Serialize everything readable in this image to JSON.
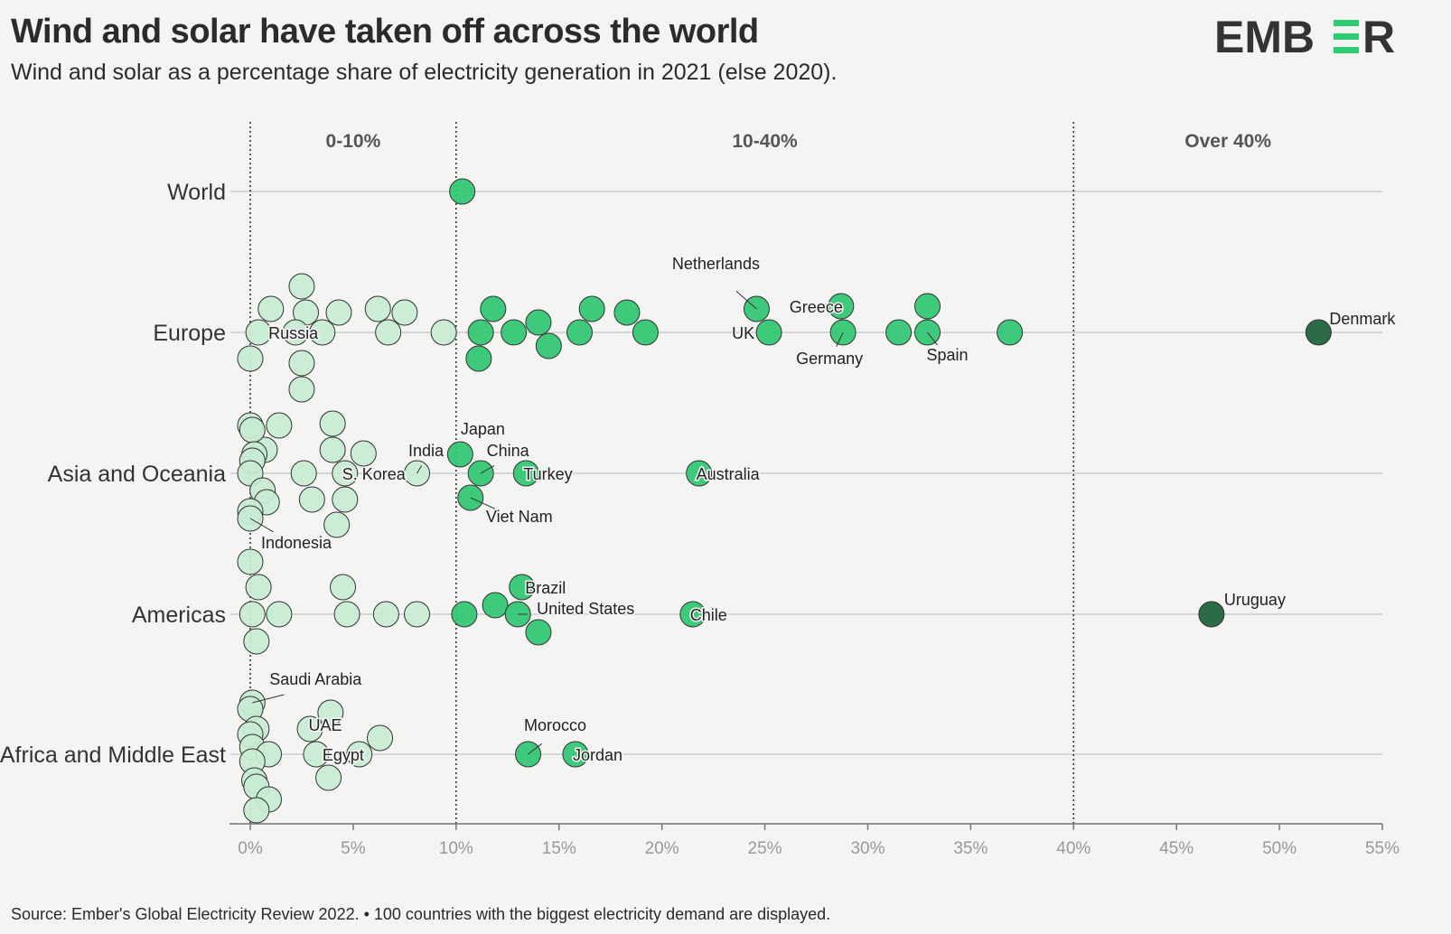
{
  "title": "Wind and solar have taken off across the world",
  "subtitle": "Wind and solar as a percentage share of electricity generation in 2021 (else 2020).",
  "logo": {
    "text_left": "EMB",
    "text_right": "R",
    "colors": {
      "dark": "#333333",
      "accent": "#2ecc71"
    }
  },
  "footer": "Source: Ember's Global Electricity Review 2022. • 100 countries with the biggest electricity demand are displayed.",
  "chart_data": {
    "type": "scatter",
    "xlabel": "",
    "ylabel": "",
    "xlim": [
      0,
      55
    ],
    "x_ticks": [
      0,
      5,
      10,
      15,
      20,
      25,
      30,
      35,
      40,
      45,
      50,
      55
    ],
    "x_tick_labels": [
      "0%",
      "5%",
      "10%",
      "15%",
      "20%",
      "25%",
      "30%",
      "35%",
      "40%",
      "45%",
      "50%",
      "55%"
    ],
    "grid": "horizontal row lines",
    "thresholds": [
      0,
      10,
      40
    ],
    "bands": [
      {
        "label": "0-10%",
        "from": 0,
        "to": 10
      },
      {
        "label": "10-40%",
        "from": 10,
        "to": 40
      },
      {
        "label": "Over 40%",
        "from": 40,
        "to": 55
      }
    ],
    "colors": {
      "low": "#c8ecd2",
      "mid": "#2fc671",
      "high": "#1a5e38",
      "stroke": "#333333",
      "grid": "#cccccc"
    },
    "categories": [
      "World",
      "Europe",
      "Asia and Oceania",
      "Americas",
      "Africa and Middle East"
    ],
    "points": [
      {
        "region": "World",
        "value": 10.3,
        "dy": 0
      },
      {
        "region": "Europe",
        "value": 2.5,
        "dy": -51
      },
      {
        "region": "Europe",
        "value": 1.0,
        "dy": -26
      },
      {
        "region": "Europe",
        "value": 2.7,
        "dy": -22
      },
      {
        "region": "Europe",
        "value": 4.3,
        "dy": -22
      },
      {
        "region": "Europe",
        "value": 6.2,
        "dy": -26
      },
      {
        "region": "Europe",
        "value": 7.5,
        "dy": -22
      },
      {
        "region": "Europe",
        "value": 0.4,
        "dy": 0,
        "label": "Russia"
      },
      {
        "region": "Europe",
        "value": 2.2,
        "dy": 0
      },
      {
        "region": "Europe",
        "value": 3.5,
        "dy": 0
      },
      {
        "region": "Europe",
        "value": 6.7,
        "dy": 0
      },
      {
        "region": "Europe",
        "value": 9.4,
        "dy": 0
      },
      {
        "region": "Europe",
        "value": 0.0,
        "dy": 29
      },
      {
        "region": "Europe",
        "value": 2.5,
        "dy": 34
      },
      {
        "region": "Europe",
        "value": 2.5,
        "dy": 63
      },
      {
        "region": "Europe",
        "value": 11.8,
        "dy": -26
      },
      {
        "region": "Europe",
        "value": 14.0,
        "dy": -11
      },
      {
        "region": "Europe",
        "value": 16.6,
        "dy": -26
      },
      {
        "region": "Europe",
        "value": 18.3,
        "dy": -22
      },
      {
        "region": "Europe",
        "value": 24.6,
        "dy": -26,
        "label": "Netherlands"
      },
      {
        "region": "Europe",
        "value": 28.7,
        "dy": -29,
        "label": "Greece"
      },
      {
        "region": "Europe",
        "value": 32.9,
        "dy": -29
      },
      {
        "region": "Europe",
        "value": 11.2,
        "dy": 0
      },
      {
        "region": "Europe",
        "value": 12.8,
        "dy": 0
      },
      {
        "region": "Europe",
        "value": 16.0,
        "dy": 0
      },
      {
        "region": "Europe",
        "value": 19.2,
        "dy": 0
      },
      {
        "region": "Europe",
        "value": 25.2,
        "dy": 0,
        "label": "UK"
      },
      {
        "region": "Europe",
        "value": 28.8,
        "dy": 0,
        "label": "Germany"
      },
      {
        "region": "Europe",
        "value": 31.5,
        "dy": 0
      },
      {
        "region": "Europe",
        "value": 32.9,
        "dy": 0,
        "label": "Spain"
      },
      {
        "region": "Europe",
        "value": 36.9,
        "dy": 0
      },
      {
        "region": "Europe",
        "value": 14.5,
        "dy": 15
      },
      {
        "region": "Europe",
        "value": 11.1,
        "dy": 29
      },
      {
        "region": "Europe",
        "value": 51.9,
        "dy": 0,
        "label": "Denmark"
      },
      {
        "region": "Asia and Oceania",
        "value": 0.0,
        "dy": -53
      },
      {
        "region": "Asia and Oceania",
        "value": 1.4,
        "dy": -53
      },
      {
        "region": "Asia and Oceania",
        "value": 0.7,
        "dy": -26
      },
      {
        "region": "Asia and Oceania",
        "value": 0.1,
        "dy": -48
      },
      {
        "region": "Asia and Oceania",
        "value": 0.2,
        "dy": -21
      },
      {
        "region": "Asia and Oceania",
        "value": 0.1,
        "dy": -14
      },
      {
        "region": "Asia and Oceania",
        "value": 0.0,
        "dy": 0
      },
      {
        "region": "Asia and Oceania",
        "value": 2.6,
        "dy": 0
      },
      {
        "region": "Asia and Oceania",
        "value": 4.0,
        "dy": -55
      },
      {
        "region": "Asia and Oceania",
        "value": 4.0,
        "dy": -26
      },
      {
        "region": "Asia and Oceania",
        "value": 5.5,
        "dy": -22
      },
      {
        "region": "Asia and Oceania",
        "value": 4.6,
        "dy": 0,
        "label": "S. Korea"
      },
      {
        "region": "Asia and Oceania",
        "value": 8.1,
        "dy": 0,
        "label": "India"
      },
      {
        "region": "Asia and Oceania",
        "value": 0.6,
        "dy": 19
      },
      {
        "region": "Asia and Oceania",
        "value": 0.8,
        "dy": 32
      },
      {
        "region": "Asia and Oceania",
        "value": 3.0,
        "dy": 29
      },
      {
        "region": "Asia and Oceania",
        "value": 4.6,
        "dy": 29
      },
      {
        "region": "Asia and Oceania",
        "value": 0.0,
        "dy": 42
      },
      {
        "region": "Asia and Oceania",
        "value": 0.0,
        "dy": 50,
        "label": "Indonesia"
      },
      {
        "region": "Asia and Oceania",
        "value": 4.2,
        "dy": 57
      },
      {
        "region": "Asia and Oceania",
        "value": 10.2,
        "dy": -21,
        "label": "Japan"
      },
      {
        "region": "Asia and Oceania",
        "value": 11.2,
        "dy": 0,
        "label": "China"
      },
      {
        "region": "Asia and Oceania",
        "value": 13.4,
        "dy": 0,
        "label": "Turkey"
      },
      {
        "region": "Asia and Oceania",
        "value": 10.7,
        "dy": 27,
        "label": "Viet Nam"
      },
      {
        "region": "Asia and Oceania",
        "value": 21.8,
        "dy": 0,
        "label": "Australia"
      },
      {
        "region": "Americas",
        "value": 0.0,
        "dy": -58
      },
      {
        "region": "Americas",
        "value": 0.4,
        "dy": -30
      },
      {
        "region": "Americas",
        "value": 0.1,
        "dy": 0
      },
      {
        "region": "Americas",
        "value": 1.4,
        "dy": 0
      },
      {
        "region": "Americas",
        "value": 0.3,
        "dy": 30
      },
      {
        "region": "Americas",
        "value": 4.5,
        "dy": -30
      },
      {
        "region": "Americas",
        "value": 4.7,
        "dy": 0
      },
      {
        "region": "Americas",
        "value": 6.6,
        "dy": 0
      },
      {
        "region": "Americas",
        "value": 8.1,
        "dy": 0
      },
      {
        "region": "Americas",
        "value": 10.4,
        "dy": 0
      },
      {
        "region": "Americas",
        "value": 11.9,
        "dy": -10
      },
      {
        "region": "Americas",
        "value": 13.2,
        "dy": -30,
        "label": "Brazil"
      },
      {
        "region": "Americas",
        "value": 13.0,
        "dy": 0,
        "label": "United States"
      },
      {
        "region": "Americas",
        "value": 14.0,
        "dy": 20
      },
      {
        "region": "Americas",
        "value": 21.5,
        "dy": 0,
        "label": "Chile"
      },
      {
        "region": "Americas",
        "value": 46.7,
        "dy": 0,
        "label": "Uruguay"
      },
      {
        "region": "Africa and Middle East",
        "value": 0.1,
        "dy": -57,
        "label": "Saudi Arabia"
      },
      {
        "region": "Africa and Middle East",
        "value": 0.0,
        "dy": -50
      },
      {
        "region": "Africa and Middle East",
        "value": 0.3,
        "dy": -28
      },
      {
        "region": "Africa and Middle East",
        "value": 0.0,
        "dy": -22
      },
      {
        "region": "Africa and Middle East",
        "value": 0.1,
        "dy": -8
      },
      {
        "region": "Africa and Middle East",
        "value": 0.9,
        "dy": 0
      },
      {
        "region": "Africa and Middle East",
        "value": 0.1,
        "dy": 8
      },
      {
        "region": "Africa and Middle East",
        "value": 0.2,
        "dy": 29
      },
      {
        "region": "Africa and Middle East",
        "value": 0.3,
        "dy": 36
      },
      {
        "region": "Africa and Middle East",
        "value": 0.9,
        "dy": 50
      },
      {
        "region": "Africa and Middle East",
        "value": 0.3,
        "dy": 62
      },
      {
        "region": "Africa and Middle East",
        "value": 3.9,
        "dy": -46
      },
      {
        "region": "Africa and Middle East",
        "value": 2.9,
        "dy": -28,
        "label": "UAE"
      },
      {
        "region": "Africa and Middle East",
        "value": 6.3,
        "dy": -18
      },
      {
        "region": "Africa and Middle East",
        "value": 3.2,
        "dy": 0,
        "label": "Egypt"
      },
      {
        "region": "Africa and Middle East",
        "value": 5.3,
        "dy": 0
      },
      {
        "region": "Africa and Middle East",
        "value": 3.8,
        "dy": 26
      },
      {
        "region": "Africa and Middle East",
        "value": 13.5,
        "dy": 0,
        "label": "Morocco"
      },
      {
        "region": "Africa and Middle East",
        "value": 15.8,
        "dy": 0,
        "label": "Jordan"
      }
    ]
  }
}
